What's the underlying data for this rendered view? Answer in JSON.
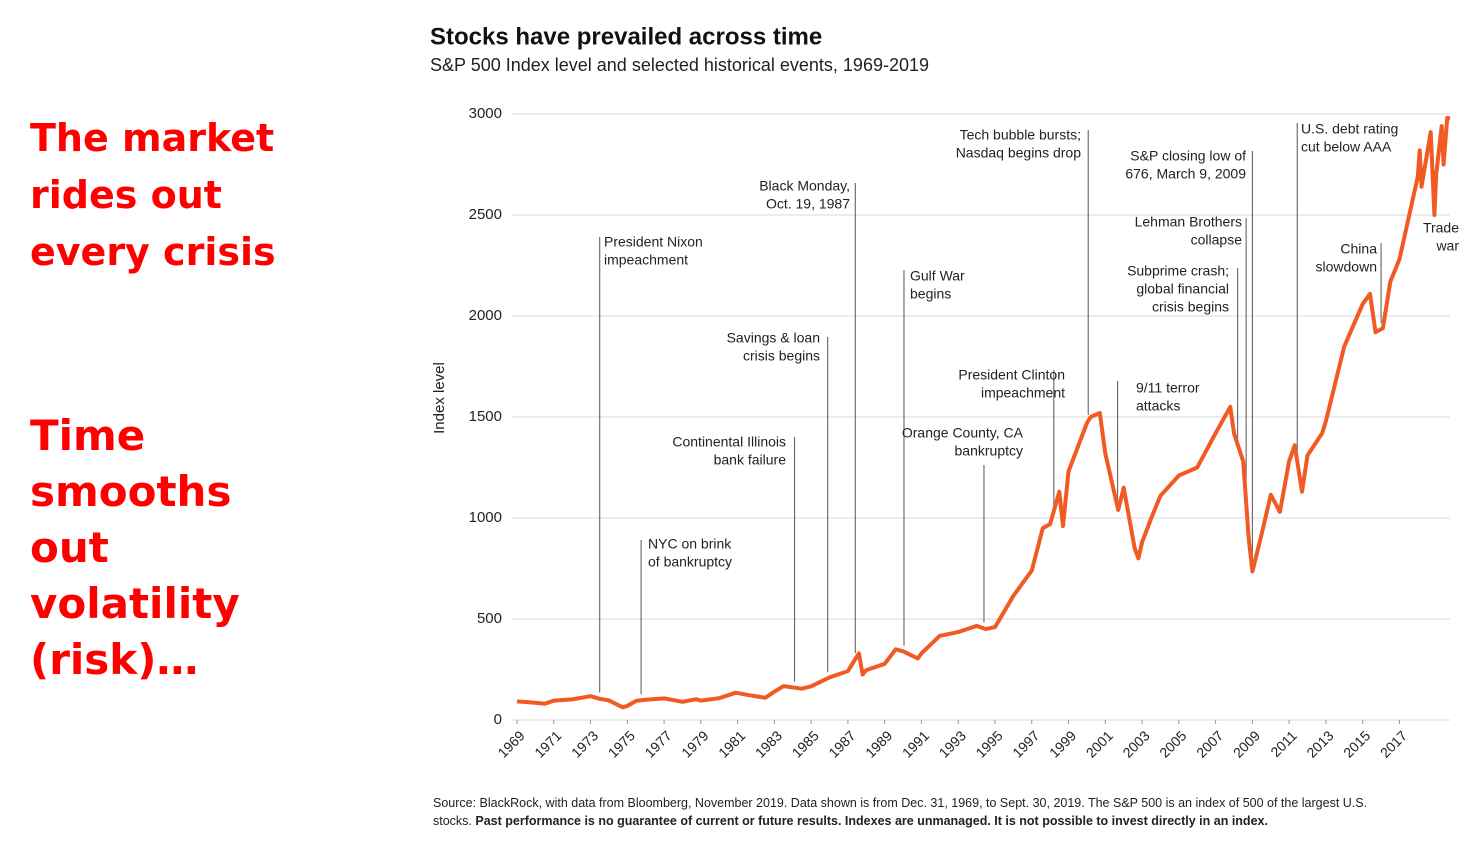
{
  "slide": {
    "point_one": [
      "The market",
      "rides out",
      "every crisis"
    ],
    "point_two": [
      "Time",
      "smooths",
      "out",
      "volatility",
      "(risk)…"
    ]
  },
  "chart_data": {
    "type": "line",
    "title": "Stocks have prevailed across time",
    "subtitle": "S&P 500 Index level and selected historical events, 1969-2019",
    "y_label": "Index level",
    "xlim": [
      1969,
      2019.75
    ],
    "xticks": [
      1969,
      1971,
      1973,
      1975,
      1977,
      1979,
      1981,
      1983,
      1985,
      1987,
      1989,
      1991,
      1993,
      1995,
      1997,
      1999,
      2001,
      2003,
      2005,
      2007,
      2009,
      2011,
      2013,
      2015,
      2017
    ],
    "ylim": [
      0,
      3000
    ],
    "yticks": [
      0,
      500,
      1000,
      1500,
      2000,
      2500,
      3000
    ],
    "grid": true,
    "series": [
      {
        "name": "S&P 500 Index",
        "color": "#f15a22",
        "x": [
          1969.0,
          1970.0,
          1970.5,
          1971.0,
          1972.0,
          1973.0,
          1973.5,
          1974.0,
          1974.75,
          1975.0,
          1975.5,
          1976.0,
          1977.0,
          1978.0,
          1978.75,
          1979.0,
          1980.0,
          1980.9,
          1981.5,
          1982.5,
          1983.0,
          1983.5,
          1984.5,
          1985.0,
          1986.0,
          1987.0,
          1987.6,
          1987.8,
          1988.0,
          1989.0,
          1989.6,
          1990.0,
          1990.8,
          1991.0,
          1992.0,
          1993.0,
          1994.0,
          1994.5,
          1995.0,
          1996.0,
          1997.0,
          1997.6,
          1998.0,
          1998.5,
          1998.7,
          1999.0,
          2000.0,
          2000.2,
          2000.7,
          2001.0,
          2001.7,
          2002.0,
          2002.6,
          2002.8,
          2003.0,
          2003.5,
          2004.0,
          2005.0,
          2006.0,
          2007.0,
          2007.8,
          2008.0,
          2008.5,
          2008.8,
          2009.0,
          2009.5,
          2010.0,
          2010.5,
          2011.0,
          2011.3,
          2011.7,
          2012.0,
          2012.8,
          2013.0,
          2014.0,
          2015.0,
          2015.4,
          2015.7,
          2016.1,
          2016.5,
          2017.0,
          2018.0,
          2018.1,
          2018.2,
          2018.7,
          2018.9,
          2019.0,
          2019.3,
          2019.4,
          2019.6,
          2019.75
        ],
        "values": [
          92,
          85,
          80,
          96,
          102,
          118,
          105,
          97,
          63,
          70,
          95,
          100,
          107,
          90,
          103,
          96,
          108,
          135,
          125,
          110,
          140,
          168,
          155,
          167,
          211,
          242,
          330,
          225,
          247,
          278,
          350,
          340,
          305,
          330,
          417,
          435,
          466,
          450,
          460,
          615,
          740,
          950,
          970,
          1130,
          960,
          1230,
          1470,
          1500,
          1520,
          1320,
          1040,
          1150,
          850,
          800,
          880,
          1000,
          1110,
          1210,
          1250,
          1420,
          1550,
          1420,
          1280,
          900,
          735,
          920,
          1115,
          1030,
          1280,
          1360,
          1130,
          1310,
          1420,
          1480,
          1850,
          2060,
          2110,
          1920,
          1940,
          2170,
          2280,
          2690,
          2820,
          2640,
          2910,
          2500,
          2700,
          2940,
          2750,
          2980,
          2977
        ]
      }
    ],
    "annotations": [
      {
        "lines": [
          "President Nixon",
          "impeachment"
        ],
        "x": 1973.5
      },
      {
        "lines": [
          "NYC on brink",
          "of bankruptcy"
        ],
        "x": 1975.75
      },
      {
        "lines": [
          "Continental Illinois",
          "bank failure"
        ],
        "x": 1984.1
      },
      {
        "lines": [
          "Savings & loan",
          "crisis begins"
        ],
        "x": 1985.9
      },
      {
        "lines": [
          "Black Monday,",
          "Oct. 19, 1987"
        ],
        "x": 1987.4
      },
      {
        "lines": [
          "Gulf War",
          "begins"
        ],
        "x": 1990.05
      },
      {
        "lines": [
          "Orange County, CA",
          "bankruptcy"
        ],
        "x": 1994.4
      },
      {
        "lines": [
          "President Clinton",
          "impeachment"
        ],
        "x": 1998.2
      },
      {
        "lines": [
          "Tech bubble bursts;",
          "Nasdaq begins drop"
        ],
        "x": 2000.07
      },
      {
        "lines": [
          "9/11 terror",
          "attacks"
        ],
        "x": 2001.67
      },
      {
        "lines": [
          "Subprime crash;",
          "global financial",
          "crisis begins"
        ],
        "x": 2008.2
      },
      {
        "lines": [
          "Lehman Brothers",
          "collapse"
        ],
        "x": 2008.66
      },
      {
        "lines": [
          "S&P closing low of",
          "676, March 9, 2009"
        ],
        "x": 2009.0
      },
      {
        "lines": [
          "U.S. debt rating",
          "cut below AAA"
        ],
        "x": 2011.44
      },
      {
        "lines": [
          "China",
          "slowdown"
        ],
        "x": 2016.0
      },
      {
        "lines": [
          "Trade",
          "war"
        ]
      }
    ],
    "source": "Source: BlackRock, with data from Bloomberg, November 2019. Data shown is from Dec. 31, 1969, to Sept. 30, 2019. The S&P 500 is an index of 500 of the largest U.S. stocks.",
    "disclaimer": "Past performance is no guarantee of current or future results. Indexes are unmanaged. It is not possible to invest directly in an index."
  }
}
